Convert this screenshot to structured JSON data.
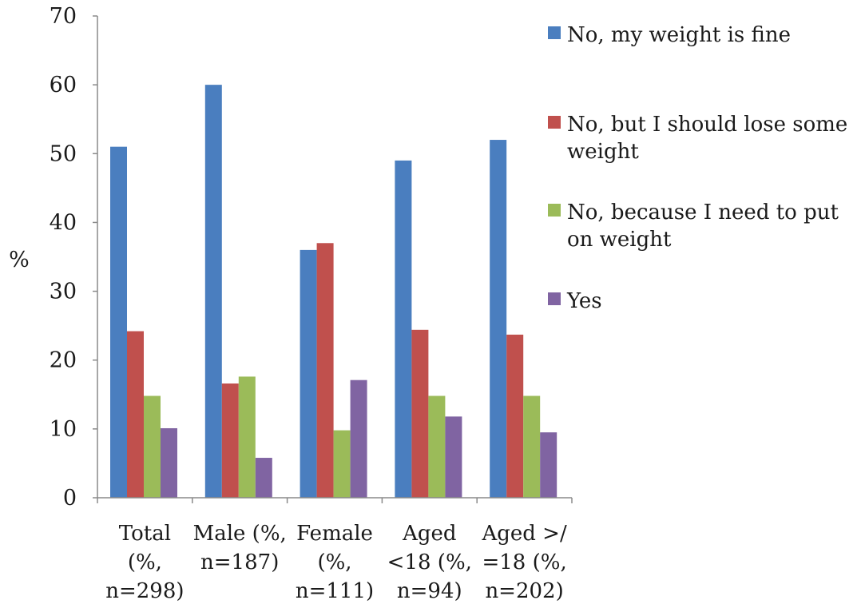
{
  "chart_data": {
    "type": "bar",
    "ylabel": "%",
    "ylim": [
      0,
      70
    ],
    "yticks": [
      0,
      10,
      20,
      30,
      40,
      50,
      60,
      70
    ],
    "grid": false,
    "legend_position": "right",
    "categories": [
      [
        "Total",
        "(%,",
        "n=298)"
      ],
      [
        "Male (%,",
        "n=187)"
      ],
      [
        "Female",
        "(%,",
        "n=111)"
      ],
      [
        "Aged",
        "<18 (%,",
        "n=94)"
      ],
      [
        "Aged >/",
        "=18 (%,",
        "n=202)"
      ]
    ],
    "series": [
      {
        "name": "No, my weight is fine",
        "name_lines": [
          "No, my weight is fine"
        ],
        "color": "#4a7ebf",
        "values": [
          51,
          60,
          36,
          49,
          52
        ]
      },
      {
        "name": "No, but I should lose some weight",
        "name_lines": [
          "No, but I should lose some",
          "weight"
        ],
        "color": "#c0504d",
        "values": [
          24.2,
          16.6,
          37,
          24.4,
          23.7
        ]
      },
      {
        "name": "No, because I need to put on weight",
        "name_lines": [
          "No, because I need to put",
          "on weight"
        ],
        "color": "#9bbb59",
        "values": [
          14.8,
          17.6,
          9.8,
          14.8,
          14.8
        ]
      },
      {
        "name": "Yes",
        "name_lines": [
          "Yes"
        ],
        "color": "#8064a2",
        "values": [
          10.1,
          5.8,
          17.1,
          11.8,
          9.5
        ]
      }
    ]
  }
}
